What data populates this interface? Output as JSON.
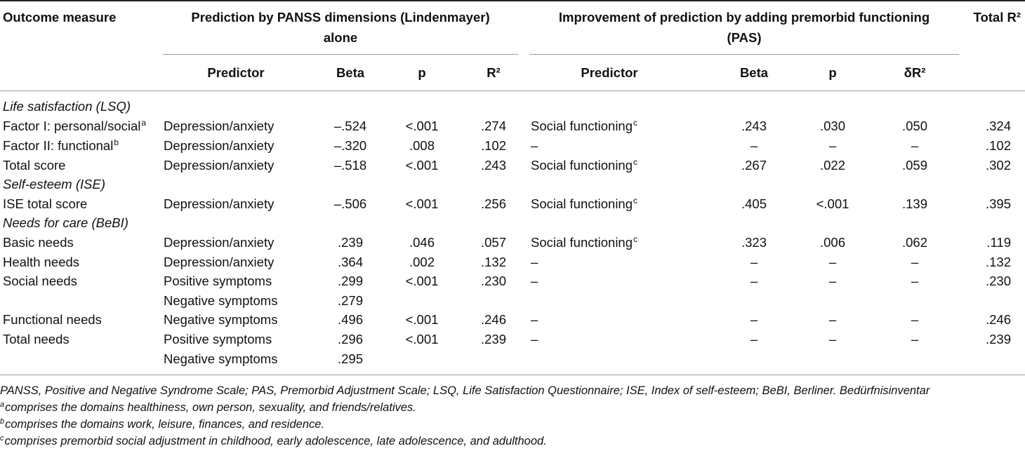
{
  "header": {
    "outcome_label": "Outcome measure",
    "group1_line1": "Prediction by PANSS dimensions (Lindenmayer)",
    "group1_line2": "alone",
    "group2_line1": "Improvement of prediction by adding premorbid functioning",
    "group2_line2": "(PAS)",
    "total_label": "Total R²",
    "sub": [
      "Predictor",
      "Beta",
      "p",
      "R²",
      "Predictor",
      "Beta",
      "p",
      "δR²"
    ]
  },
  "sections": {
    "life": "Life satisfaction (LSQ)",
    "ise": "Self-esteem (ISE)",
    "needs": "Needs for care (BeBI)"
  },
  "rows": [
    {
      "outcome": "Factor I: personal/social",
      "sup": "a",
      "pred": "Depression/anxiety",
      "beta": "–.524",
      "p": "<.001",
      "r2": ".274",
      "pred2": "Social functioning",
      "sup2": "c",
      "beta2": ".243",
      "p2": ".030",
      "dr2": ".050",
      "total": ".324"
    },
    {
      "outcome": "Factor II: functional",
      "sup": "b",
      "pred": "Depression/anxiety",
      "beta": "–.320",
      "p": ".008",
      "r2": ".102",
      "pred2": "–",
      "sup2": "",
      "beta2": "–",
      "p2": "–",
      "dr2": "–",
      "total": ".102"
    },
    {
      "outcome": "Total score",
      "sup": "",
      "pred": "Depression/anxiety",
      "beta": "–.518",
      "p": "<.001",
      "r2": ".243",
      "pred2": "Social functioning",
      "sup2": "c",
      "beta2": ".267",
      "p2": ".022",
      "dr2": ".059",
      "total": ".302"
    },
    {
      "outcome": "ISE total score",
      "sup": "",
      "pred": "Depression/anxiety",
      "beta": "–.506",
      "p": "<.001",
      "r2": ".256",
      "pred2": "Social functioning",
      "sup2": "c",
      "beta2": ".405",
      "p2": "<.001",
      "dr2": ".139",
      "total": ".395"
    },
    {
      "outcome": "Basic needs",
      "sup": "",
      "pred": "Depression/anxiety",
      "beta": ".239",
      "p": ".046",
      "r2": ".057",
      "pred2": "Social functioning",
      "sup2": "c",
      "beta2": ".323",
      "p2": ".006",
      "dr2": ".062",
      "total": ".119"
    },
    {
      "outcome": "Health needs",
      "sup": "",
      "pred": "Depression/anxiety",
      "beta": ".364",
      "p": ".002",
      "r2": ".132",
      "pred2": "–",
      "sup2": "",
      "beta2": "–",
      "p2": "–",
      "dr2": "–",
      "total": ".132"
    },
    {
      "outcome": "Social needs",
      "sup": "",
      "pred": "Positive symptoms",
      "beta": ".299",
      "p": "<.001",
      "r2": ".230",
      "pred2": "–",
      "sup2": "",
      "beta2": "–",
      "p2": "–",
      "dr2": "–",
      "total": ".230"
    },
    {
      "outcome": "",
      "sup": "",
      "pred": "Negative symptoms",
      "beta": ".279",
      "p": "",
      "r2": "",
      "pred2": "",
      "sup2": "",
      "beta2": "",
      "p2": "",
      "dr2": "",
      "total": ""
    },
    {
      "outcome": "Functional needs",
      "sup": "",
      "pred": "Negative symptoms",
      "beta": ".496",
      "p": "<.001",
      "r2": ".246",
      "pred2": "–",
      "sup2": "",
      "beta2": "–",
      "p2": "–",
      "dr2": "–",
      "total": ".246"
    },
    {
      "outcome": "Total needs",
      "sup": "",
      "pred": "Positive symptoms",
      "beta": ".296",
      "p": "<.001",
      "r2": ".239",
      "pred2": "–",
      "sup2": "",
      "beta2": "–",
      "p2": "–",
      "dr2": "–",
      "total": ".239"
    },
    {
      "outcome": "",
      "sup": "",
      "pred": "Negative symptoms",
      "beta": ".295",
      "p": "",
      "r2": "",
      "pred2": "",
      "sup2": "",
      "beta2": "",
      "p2": "",
      "dr2": "",
      "total": ""
    }
  ],
  "notes": {
    "abbrev": "PANSS, Positive and Negative Syndrome Scale; PAS, Premorbid Adjustment Scale; LSQ, Life Satisfaction Questionnaire; ISE, Index of self-esteem; BeBI, Berliner. Bedürfnisinventar",
    "a_mark": "a",
    "a_text": "comprises the domains healthiness, own person, sexuality, and friends/relatives.",
    "b_mark": "b",
    "b_text": "comprises the domains work, leisure, finances, and residence.",
    "c_mark": "c",
    "c_text": "comprises premorbid social adjustment in childhood, early adolescence, late adolescence, and adulthood."
  }
}
